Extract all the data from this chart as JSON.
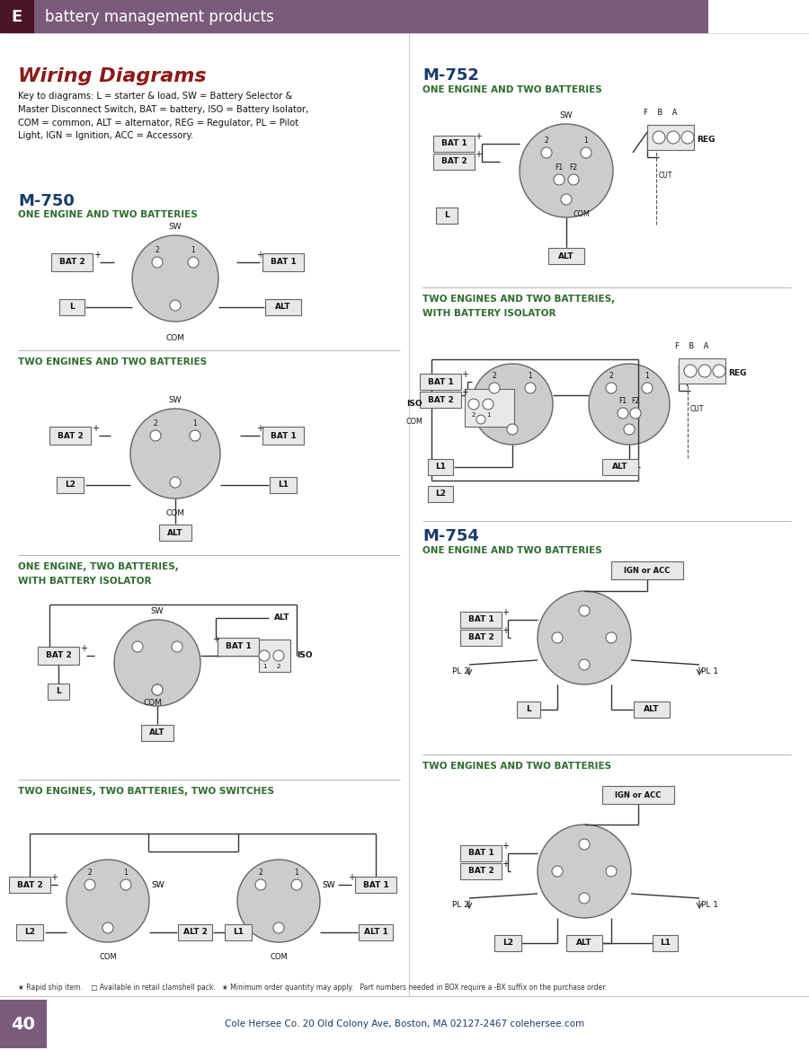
{
  "page_bg": "#ffffff",
  "header_bg": "#7b5b7b",
  "header_dark_bg": "#4a1525",
  "header_text": "battery management products",
  "header_letter": "E",
  "title_wiring": "Wiring Diagrams",
  "title_wiring_color": "#8b1a1a",
  "key_text": "Key to diagrams: L = starter & load, SW = Battery Selector &\nMaster Disconnect Switch, BAT = battery, ISO = Battery Isolator,\nCOM = common, ALT = alternator, REG = Regulator, PL = Pilot\nLight, IGN = Ignition, ACC = Accessory.",
  "m750_title": "M-750",
  "m752_title": "M-752",
  "m754_title": "M-754",
  "subtitle_color": "#2e6b2e",
  "model_title_color": "#1a3a6b",
  "circle_fill": "#cccccc",
  "circle_edge": "#666666",
  "wire_color": "#333333",
  "box_fill": "#e8e8e8",
  "box_edge": "#666666",
  "footer_bar_color": "#7b5b7b",
  "footer_num_color": "#ffffff",
  "footer_text": "Cole Hersee Co. 20 Old Colony Ave, Boston, MA 02127-2467 colehersee.com",
  "footer_num": "40",
  "footnote_text": "★ Rapid ship item.    □ Available in retail clamshell pack.   ★ Minimum order quantity may apply.   Part numbers needed in BOX require a -BX suffix on the purchase order.",
  "divider_color": "#aaaaaa",
  "col_divider_color": "#cccccc"
}
